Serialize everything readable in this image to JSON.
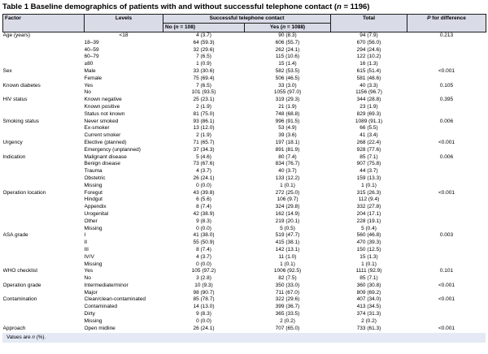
{
  "colors": {
    "header_bg": "#d9dce7",
    "footnote_bg": "#e4e9f5",
    "border": "#1a1a1a"
  },
  "title": {
    "pre": "Table 1 Baseline demographics of patients with and without successful telephone contact (",
    "n": "n",
    "post": " = 1196)"
  },
  "header": {
    "factor": "Factor",
    "levels": "Levels",
    "group": "Successful telephone contact",
    "no": {
      "pre": "No (",
      "n": "n",
      "post": " = 108)"
    },
    "yes": {
      "pre": "Yes (",
      "n": "n",
      "post": " = 1088)"
    },
    "total": "Total",
    "p": {
      "pre": "P",
      "post": " for difference"
    }
  },
  "footnote": {
    "pre": "Values are ",
    "n": "n",
    "post": " (%)."
  },
  "rows": [
    {
      "factor": "Age (years)",
      "level": "<18",
      "level_center": true,
      "no": "4 (3.7)",
      "yes": "90 (8.3)",
      "total": "94 (7.9)",
      "p": "0.213"
    },
    {
      "factor": "",
      "level": "18–39",
      "no": "64 (59.3)",
      "yes": "606 (55.7)",
      "total": "670 (56.0)",
      "p": ""
    },
    {
      "factor": "",
      "level": "40–59",
      "no": "32 (29.6)",
      "yes": "262 (24.1)",
      "total": "294 (24.6)",
      "p": ""
    },
    {
      "factor": "",
      "level": "60–79",
      "no": "7 (6.5)",
      "yes": "115 (10.6)",
      "total": "122 (10.2)",
      "p": ""
    },
    {
      "factor": "",
      "level": "≥80",
      "no": "1 (0.9)",
      "yes": "15 (1.4)",
      "total": "16 (1.3)",
      "p": ""
    },
    {
      "factor": "Sex",
      "level": "Male",
      "no": "33 (30.6)",
      "yes": "582 (53.5)",
      "total": "615 (51.4)",
      "p": "<0.001"
    },
    {
      "factor": "",
      "level": "Female",
      "no": "75 (69.4)",
      "yes": "506 (46.5)",
      "total": "581 (48.6)",
      "p": ""
    },
    {
      "factor": "Known diabetes",
      "level": "Yes",
      "no": "7 (6.5)",
      "yes": "33 (3.0)",
      "total": "40 (3.3)",
      "p": "0.105"
    },
    {
      "factor": "",
      "level": "No",
      "no": "101 (93.5)",
      "yes": "1055 (97.0)",
      "total": "1156 (96.7)",
      "p": ""
    },
    {
      "factor": "HIV status",
      "level": "Known negative",
      "no": "25 (23.1)",
      "yes": "319 (29.3)",
      "total": "344 (28.8)",
      "p": "0.395"
    },
    {
      "factor": "",
      "level": "Known positive",
      "no": "2 (1.9)",
      "yes": "21 (1.9)",
      "total": "23 (1.9)",
      "p": ""
    },
    {
      "factor": "",
      "level": "Status not known",
      "no": "81 (75.0)",
      "yes": "748 (68.8)",
      "total": "829 (69.3)",
      "p": ""
    },
    {
      "factor": "Smoking status",
      "level": "Never smoked",
      "no": "93 (86.1)",
      "yes": "996 (91.5)",
      "total": "1089 (91.1)",
      "p": "0.006"
    },
    {
      "factor": "",
      "level": "Ex-smoker",
      "no": "13 (12.0)",
      "yes": "53 (4.9)",
      "total": "66 (5.5)",
      "p": ""
    },
    {
      "factor": "",
      "level": "Current smoker",
      "no": "2 (1.9)",
      "yes": "39 (3.6)",
      "total": "41 (3.4)",
      "p": ""
    },
    {
      "factor": "Urgency",
      "level": "Elective (planned)",
      "no": "71 (65.7)",
      "yes": "197 (18.1)",
      "total": "268 (22.4)",
      "p": "<0.001"
    },
    {
      "factor": "",
      "level": "Emergency (unplanned)",
      "no": "37 (34.3)",
      "yes": "891 (81.9)",
      "total": "928 (77.6)",
      "p": ""
    },
    {
      "factor": "Indication",
      "level": "Malignant disease",
      "no": "5 (4.6)",
      "yes": "80 (7.4)",
      "total": "85 (7.1)",
      "p": "0.006"
    },
    {
      "factor": "",
      "level": "Benign disease",
      "no": "73 (67.6)",
      "yes": "834 (76.7)",
      "total": "907 (75.8)",
      "p": ""
    },
    {
      "factor": "",
      "level": "Trauma",
      "no": "4 (3.7)",
      "yes": "40 (3.7)",
      "total": "44 (3.7)",
      "p": ""
    },
    {
      "factor": "",
      "level": "Obstetric",
      "no": "26 (24.1)",
      "yes": "133 (12.2)",
      "total": "159 (13.3)",
      "p": ""
    },
    {
      "factor": "",
      "level": "Missing",
      "no": "0 (0.0)",
      "yes": "1 (0.1)",
      "total": "1 (0.1)",
      "p": ""
    },
    {
      "factor": "Operation location",
      "level": "Foregut",
      "no": "43 (39.8)",
      "yes": "272 (25.0)",
      "total": "315 (26.3)",
      "p": "<0.001"
    },
    {
      "factor": "",
      "level": "Hindgut",
      "no": "6 (5.6)",
      "yes": "106 (9.7)",
      "total": "112 (9.4)",
      "p": ""
    },
    {
      "factor": "",
      "level": "Appendix",
      "no": "8 (7.4)",
      "yes": "324 (29.8)",
      "total": "332 (27.8)",
      "p": ""
    },
    {
      "factor": "",
      "level": "Urogenital",
      "no": "42 (38.9)",
      "yes": "162 (14.9)",
      "total": "204 (17.1)",
      "p": ""
    },
    {
      "factor": "",
      "level": "Other",
      "no": "9 (8.3)",
      "yes": "219 (20.1)",
      "total": "228 (19.1)",
      "p": ""
    },
    {
      "factor": "",
      "level": "Missing",
      "no": "0 (0.0)",
      "yes": "5 (0.5)",
      "total": "5 (0.4)",
      "p": ""
    },
    {
      "factor": "ASA grade",
      "level": "I",
      "no": "41 (38.0)",
      "yes": "519 (47.7)",
      "total": "560 (46.8)",
      "p": "0.003"
    },
    {
      "factor": "",
      "level": "II",
      "no": "55 (50.9)",
      "yes": "415 (38.1)",
      "total": "470 (39.3)",
      "p": ""
    },
    {
      "factor": "",
      "level": "III",
      "no": "8 (7.4)",
      "yes": "142 (13.1)",
      "total": "150 (12.5)",
      "p": ""
    },
    {
      "factor": "",
      "level": "IV/V",
      "no": "4 (3.7)",
      "yes": "11 (1.0)",
      "total": "15 (1.3)",
      "p": ""
    },
    {
      "factor": "",
      "level": "Missing",
      "no": "0 (0.0)",
      "yes": "1 (0.1)",
      "total": "1 (0.1)",
      "p": ""
    },
    {
      "factor": "WHO checklist",
      "level": "Yes",
      "no": "105 (97.2)",
      "yes": "1006 (92.5)",
      "total": "1111 (92.9)",
      "p": "0.101"
    },
    {
      "factor": "",
      "level": "No",
      "no": "3 (2.8)",
      "yes": "82 (7.5)",
      "total": "85 (7.1)",
      "p": ""
    },
    {
      "factor": "Operation grade",
      "level": "Intermediate/minor",
      "no": "10 (9.3)",
      "yes": "350 (33.0)",
      "total": "360 (30.8)",
      "p": "<0.001"
    },
    {
      "factor": "",
      "level": "Major",
      "no": "98 (90.7)",
      "yes": "711 (67.0)",
      "total": "809 (69.2)",
      "p": ""
    },
    {
      "factor": "Contamination",
      "level": "Clean/clean-contaminated",
      "no": "85 (78.7)",
      "yes": "322 (29.6)",
      "total": "407 (34.0)",
      "p": "<0.001"
    },
    {
      "factor": "",
      "level": "Contaminated",
      "no": "14 (13.0)",
      "yes": "399 (36.7)",
      "total": "413 (34.5)",
      "p": ""
    },
    {
      "factor": "",
      "level": "Dirty",
      "no": "9 (8.3)",
      "yes": "365 (33.5)",
      "total": "374 (31.3)",
      "p": ""
    },
    {
      "factor": "",
      "level": "Missing",
      "no": "0 (0.0)",
      "yes": "2 (0.2)",
      "total": "2 (0.2)",
      "p": ""
    },
    {
      "factor": "Approach",
      "level": "Open midline",
      "no": "26 (24.1)",
      "yes": "707 (65.0)",
      "total": "733 (61.3)",
      "p": "<0.001"
    }
  ]
}
